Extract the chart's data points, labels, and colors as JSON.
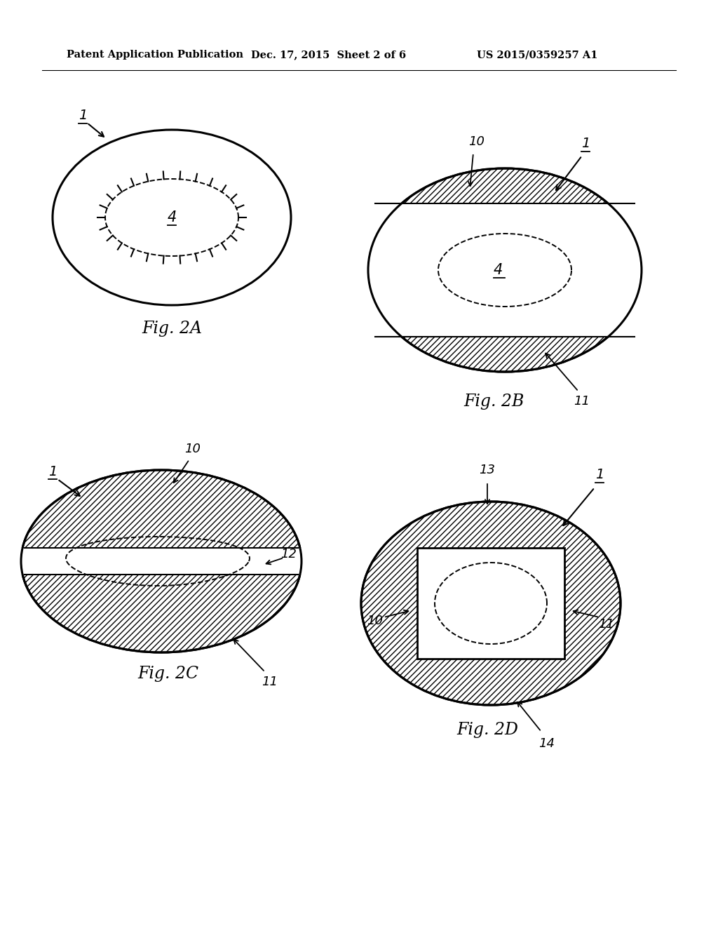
{
  "header_left": "Patent Application Publication",
  "header_mid": "Dec. 17, 2015  Sheet 2 of 6",
  "header_right": "US 2015/0359257 A1",
  "bg_color": "#ffffff",
  "line_color": "#000000"
}
